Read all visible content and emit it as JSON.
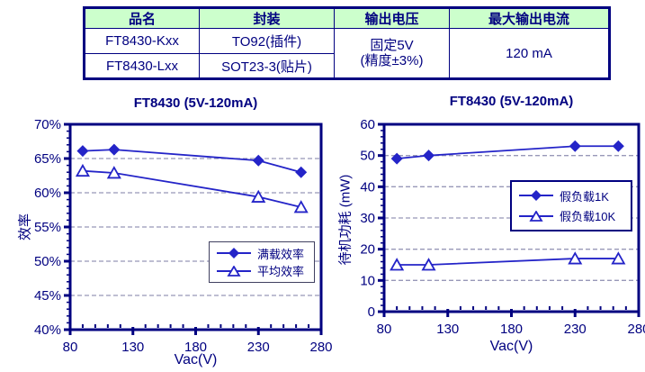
{
  "table": {
    "headers": [
      "品名",
      "封装",
      "输出电压",
      "最大输出电流"
    ],
    "rows": [
      [
        "FT8430-Kxx",
        "TO92(插件)"
      ],
      [
        "FT8430-Lxx",
        "SOT23-3(贴片)"
      ]
    ],
    "output_voltage_line1": "固定5V",
    "output_voltage_line2": "(精度±3%)",
    "max_output_current": "120 mA"
  },
  "chart_data": [
    {
      "type": "line",
      "title": "FT8430 (5V-120mA)",
      "xlabel": "Vac(V)",
      "ylabel": "效率",
      "xlim": [
        80,
        280
      ],
      "ylim": [
        40,
        70
      ],
      "xticks": [
        80,
        130,
        180,
        230,
        280
      ],
      "yticks": [
        40,
        45,
        50,
        55,
        60,
        65,
        70
      ],
      "ytick_labels": [
        "40%",
        "45%",
        "50%",
        "55%",
        "60%",
        "65%",
        "70%"
      ],
      "x_minor_step": 10,
      "y_minor_step": 1,
      "grid": "horizontal dashed at interior major yticks",
      "legend_position": "inside lower-right",
      "x": [
        90,
        115,
        230,
        264
      ],
      "series": [
        {
          "name": "满载效率",
          "marker": "filled-diamond",
          "values": [
            66.1,
            66.3,
            64.7,
            63.0
          ]
        },
        {
          "name": "平均效率",
          "marker": "open-triangle",
          "values": [
            63.2,
            62.9,
            59.4,
            57.9
          ]
        }
      ]
    },
    {
      "type": "line",
      "title": "FT8430 (5V-120mA)",
      "xlabel": "Vac(V)",
      "ylabel": "待机功耗 (mW)",
      "xlim": [
        80,
        280
      ],
      "ylim": [
        0,
        60
      ],
      "xticks": [
        80,
        130,
        180,
        230,
        280
      ],
      "yticks": [
        0,
        10,
        20,
        30,
        40,
        50,
        60
      ],
      "ytick_labels": [
        "0",
        "10",
        "20",
        "30",
        "40",
        "50",
        "60"
      ],
      "x_minor_step": 10,
      "y_minor_step": 2,
      "grid": "horizontal dashed at interior major yticks",
      "legend_position": "inside middle-right",
      "x": [
        90,
        115,
        230,
        264
      ],
      "series": [
        {
          "name": "假负载1K",
          "marker": "filled-diamond",
          "values": [
            49,
            50,
            53,
            53
          ]
        },
        {
          "name": "假负载10K",
          "marker": "open-triangle",
          "values": [
            15,
            15,
            17,
            17
          ]
        }
      ]
    }
  ],
  "colors": {
    "axis": "#000080",
    "series": "#2424c8",
    "grid": "#9898b8",
    "table_header_bg": "#ccffcc",
    "text": "#000080"
  }
}
